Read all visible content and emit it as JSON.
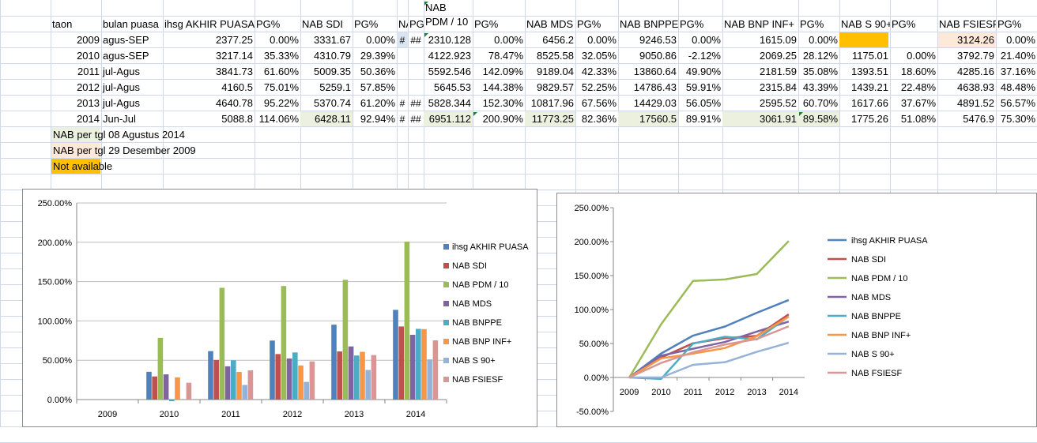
{
  "headers": [
    "taon",
    "bulan puasa",
    "ihsg AKHIR PUASA",
    "PG%",
    "NAB SDI",
    "PG%",
    "NA",
    "PG",
    "NAB PDM / 10",
    "PG%",
    "NAB MDS",
    "PG%",
    "NAB BNPPE",
    "PG%",
    "NAB BNP INF+",
    "PG%",
    "NAB S 90+",
    "PG%",
    "NAB FSIESF",
    "PG%"
  ],
  "rows": [
    [
      "2009",
      "agus-SEP",
      "2377.25",
      "0.00%",
      "3331.67",
      "0.00%",
      "#",
      "##",
      "2310.128",
      "0.00%",
      "6456.2",
      "0.00%",
      "9246.53",
      "0.00%",
      "1615.09",
      "0.00%",
      "",
      "",
      "3124.26",
      "0.00%"
    ],
    [
      "2010",
      "agus-SEP",
      "3217.14",
      "35.33%",
      "4310.79",
      "29.39%",
      "",
      "",
      "4122.923",
      "78.47%",
      "8525.58",
      "32.05%",
      "9050.86",
      "-2.12%",
      "2069.25",
      "28.12%",
      "1175.01",
      "0.00%",
      "3792.79",
      "21.40%"
    ],
    [
      "2011",
      "jul-Agus",
      "3841.73",
      "61.60%",
      "5009.35",
      "50.36%",
      "",
      "",
      "5592.546",
      "142.09%",
      "9189.04",
      "42.33%",
      "13860.64",
      "49.90%",
      "2181.59",
      "35.08%",
      "1393.51",
      "18.60%",
      "4285.16",
      "37.16%"
    ],
    [
      "2012",
      "jul-Agus",
      "4160.5",
      "75.01%",
      "5259.1",
      "57.85%",
      "",
      "",
      "5645.53",
      "144.38%",
      "9829.57",
      "52.25%",
      "14786.43",
      "59.91%",
      "2315.84",
      "43.39%",
      "1439.21",
      "22.48%",
      "4638.93",
      "48.48%"
    ],
    [
      "2013",
      "jul-Agus",
      "4640.78",
      "95.22%",
      "5370.74",
      "61.20%",
      "#",
      "##",
      "5828.344",
      "152.30%",
      "10817.96",
      "67.56%",
      "14429.03",
      "56.05%",
      "2595.52",
      "60.70%",
      "1617.66",
      "37.67%",
      "4891.52",
      "56.57%"
    ],
    [
      "2014",
      "Jun-Jul",
      "5088.8",
      "114.06%",
      "6428.11",
      "92.94%",
      "#",
      "##",
      "6951.112",
      "200.90%",
      "11773.25",
      "82.36%",
      "17560.5",
      "89.91%",
      "3061.91",
      "89.58%",
      "1775.26",
      "51.08%",
      "5476.9",
      "75.30%"
    ]
  ],
  "notes": [
    "NAB per tgl 08 Agustus 2014",
    "NAB per tgl 29 Desember 2009",
    "Not available"
  ],
  "colors": {
    "grid": "#d0d7e5",
    "highlight_green": "#ebf1de",
    "highlight_peach": "#fde9d9",
    "not_available": "#ffc000",
    "light_blue": "#dbe5f1"
  },
  "chart_data": [
    {
      "type": "bar",
      "categories": [
        "2009",
        "2010",
        "2011",
        "2012",
        "2013",
        "2014"
      ],
      "ylim": [
        0,
        250
      ],
      "yticks": [
        "0.00%",
        "50.00%",
        "100.00%",
        "150.00%",
        "200.00%",
        "250.00%"
      ],
      "legend": "right",
      "grid": true,
      "series": [
        {
          "name": "ihsg AKHIR PUASA",
          "color": "#4f81bd",
          "values": [
            0,
            35.33,
            61.6,
            75.01,
            95.22,
            114.06
          ]
        },
        {
          "name": "NAB SDI",
          "color": "#c0504d",
          "values": [
            0,
            29.39,
            50.36,
            57.85,
            61.2,
            92.94
          ]
        },
        {
          "name": "NAB PDM / 10",
          "color": "#9bbb59",
          "values": [
            0,
            78.47,
            142.09,
            144.38,
            152.3,
            200.9
          ]
        },
        {
          "name": "NAB MDS",
          "color": "#8064a2",
          "values": [
            0,
            32.05,
            42.33,
            52.25,
            67.56,
            82.36
          ]
        },
        {
          "name": "NAB BNPPE",
          "color": "#4bacc6",
          "values": [
            0,
            -2.12,
            49.9,
            59.91,
            56.05,
            89.91
          ]
        },
        {
          "name": "NAB BNP INF+",
          "color": "#f79646",
          "values": [
            0,
            28.12,
            35.08,
            43.39,
            60.7,
            89.58
          ]
        },
        {
          "name": "NAB S 90+",
          "color": "#95b3d7",
          "values": [
            0,
            0,
            18.6,
            22.48,
            37.67,
            51.08
          ]
        },
        {
          "name": "NAB FSIESF",
          "color": "#d99694",
          "values": [
            0,
            21.4,
            37.16,
            48.48,
            56.57,
            75.3
          ]
        }
      ]
    },
    {
      "type": "line",
      "categories": [
        "2009",
        "2010",
        "2011",
        "2012",
        "2013",
        "2014"
      ],
      "ylim": [
        -50,
        250
      ],
      "yticks": [
        "-50.00%",
        "0.00%",
        "50.00%",
        "100.00%",
        "150.00%",
        "200.00%",
        "250.00%"
      ],
      "legend": "right",
      "grid": false,
      "series": [
        {
          "name": "ihsg AKHIR PUASA",
          "color": "#4f81bd",
          "values": [
            0,
            35.33,
            61.6,
            75.01,
            95.22,
            114.06
          ]
        },
        {
          "name": "NAB SDI",
          "color": "#c0504d",
          "values": [
            0,
            29.39,
            50.36,
            57.85,
            61.2,
            92.94
          ]
        },
        {
          "name": "NAB PDM / 10",
          "color": "#9bbb59",
          "values": [
            0,
            78.47,
            142.09,
            144.38,
            152.3,
            200.9
          ]
        },
        {
          "name": "NAB MDS",
          "color": "#8064a2",
          "values": [
            0,
            32.05,
            42.33,
            52.25,
            67.56,
            82.36
          ]
        },
        {
          "name": "NAB BNPPE",
          "color": "#4bacc6",
          "values": [
            0,
            -2.12,
            49.9,
            59.91,
            56.05,
            89.91
          ]
        },
        {
          "name": "NAB BNP INF+",
          "color": "#f79646",
          "values": [
            0,
            28.12,
            35.08,
            43.39,
            60.7,
            89.58
          ]
        },
        {
          "name": "NAB S 90+",
          "color": "#95b3d7",
          "values": [
            0,
            0,
            18.6,
            22.48,
            37.67,
            51.08
          ]
        },
        {
          "name": "NAB FSIESF",
          "color": "#d99694",
          "values": [
            0,
            21.4,
            37.16,
            48.48,
            56.57,
            75.3
          ]
        }
      ]
    }
  ]
}
